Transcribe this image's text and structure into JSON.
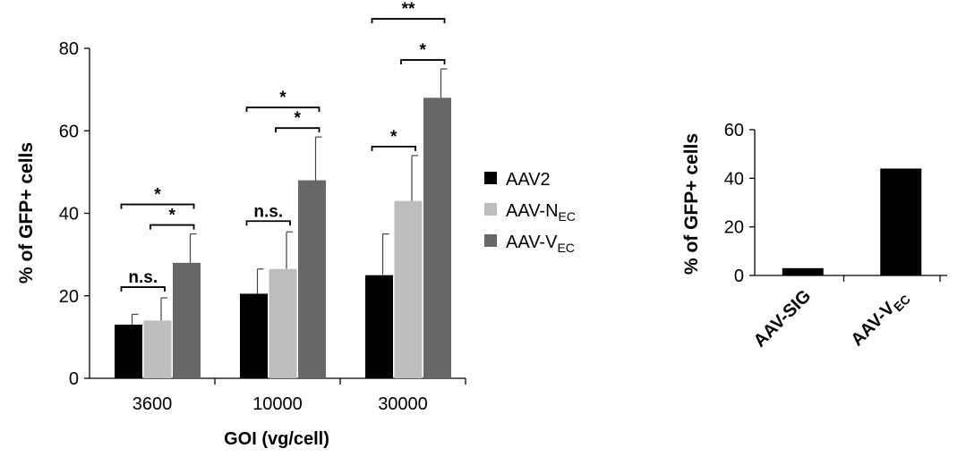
{
  "chart_data": [
    {
      "type": "bar",
      "categories": [
        "3600",
        "10000",
        "30000"
      ],
      "series": [
        {
          "name": "AAV2",
          "name_main": "AAV2",
          "name_sub": "",
          "color": "#000000",
          "values": [
            13,
            20.5,
            25
          ],
          "errors": [
            2.5,
            6,
            10
          ]
        },
        {
          "name": "AAV-NEC",
          "name_main": "AAV-N",
          "name_sub": "EC",
          "color": "#bdbdbd",
          "values": [
            14,
            26.5,
            43
          ],
          "errors": [
            5.5,
            9,
            11
          ]
        },
        {
          "name": "AAV-VEC",
          "name_main": "AAV-V",
          "name_sub": "EC",
          "color": "#676767",
          "values": [
            28,
            48,
            68
          ],
          "errors": [
            7,
            10.5,
            7
          ]
        }
      ],
      "xlabel": "GOI (vg/cell)",
      "ylabel": "% of GFP+ cells",
      "ylim": [
        0,
        80
      ],
      "yticks": [
        "0",
        "20",
        "40",
        "60",
        "80"
      ],
      "legend_position": "right",
      "significance": [
        {
          "group": 0,
          "from": 0,
          "to": 1,
          "label": "n.s."
        },
        {
          "group": 0,
          "from": 1,
          "to": 2,
          "label": "*"
        },
        {
          "group": 0,
          "from": 0,
          "to": 2,
          "label": "*"
        },
        {
          "group": 1,
          "from": 0,
          "to": 1,
          "label": "n.s."
        },
        {
          "group": 1,
          "from": 1,
          "to": 2,
          "label": "*"
        },
        {
          "group": 1,
          "from": 0,
          "to": 2,
          "label": "*"
        },
        {
          "group": 2,
          "from": 0,
          "to": 1,
          "label": "*"
        },
        {
          "group": 2,
          "from": 1,
          "to": 2,
          "label": "*"
        },
        {
          "group": 2,
          "from": 0,
          "to": 2,
          "label": "**"
        }
      ]
    },
    {
      "type": "bar",
      "categories": [
        "AAV-SIG",
        "AAV-VEC"
      ],
      "category_parts": [
        {
          "main": "AAV-SIG",
          "sub": ""
        },
        {
          "main": "AAV-V",
          "sub": "EC"
        }
      ],
      "values": [
        3,
        44
      ],
      "color": "#000000",
      "ylabel": "% of GFP+ cells",
      "ylim": [
        0,
        60
      ],
      "yticks": [
        "0",
        "20",
        "40",
        "60"
      ]
    }
  ]
}
